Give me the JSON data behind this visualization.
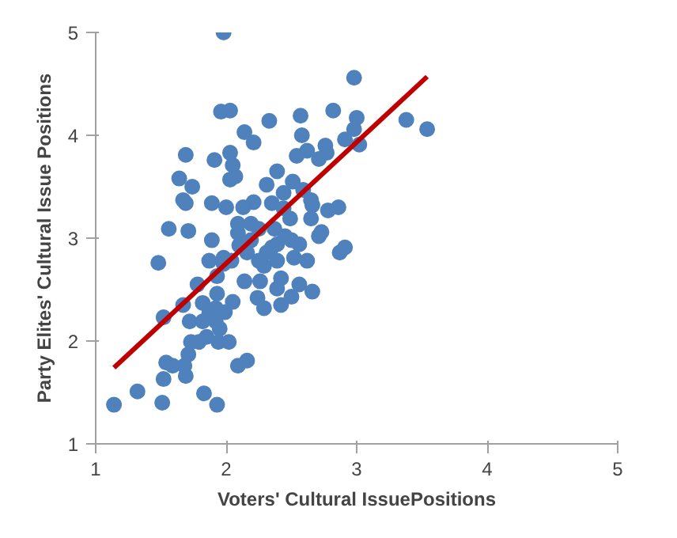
{
  "chart_data": {
    "type": "scatter",
    "xlabel": "Voters' Cultural IssuePositions",
    "ylabel": "Party Elites' Cultural Issue Positions",
    "xlim": [
      1,
      5
    ],
    "ylim": [
      1,
      5
    ],
    "xticks": [
      1,
      2,
      3,
      4,
      5
    ],
    "yticks": [
      1,
      2,
      3,
      4,
      5
    ],
    "grid": false,
    "series": [
      {
        "color": "#4f81bd",
        "marker": "circle",
        "x": [
          1.98,
          2.03,
          2.98,
          3.0,
          3.38,
          3.54,
          2.98,
          2.82,
          3.02,
          2.91,
          2.76,
          2.77,
          2.54,
          2.62,
          2.71,
          2.39,
          2.33,
          2.57,
          2.58,
          2.21,
          2.14,
          1.96,
          1.69,
          1.91,
          2.03,
          2.05,
          2.07,
          2.03,
          1.74,
          1.64,
          1.67,
          1.69,
          1.89,
          2.0,
          2.21,
          2.13,
          2.35,
          2.44,
          2.49,
          2.66,
          2.86,
          2.65,
          2.71,
          2.52,
          2.56,
          2.5,
          2.45,
          2.37,
          2.25,
          2.19,
          2.39,
          2.31,
          2.16,
          2.1,
          2.25,
          2.35,
          2.29,
          2.04,
          1.98,
          1.93,
          1.78,
          1.82,
          1.92,
          1.87,
          1.92,
          1.95,
          1.67,
          1.52,
          1.48,
          1.79,
          1.73,
          1.71,
          1.68,
          1.59,
          1.54,
          1.52,
          1.69,
          1.83,
          1.94,
          2.02,
          2.09,
          2.16,
          1.93,
          1.51,
          1.32,
          1.14,
          1.56,
          1.71,
          1.89,
          1.87,
          1.98,
          2.09,
          2.19,
          2.09,
          2.26,
          2.42,
          2.39,
          2.62,
          2.91,
          2.87,
          2.65,
          2.51,
          2.59,
          2.44,
          2.31,
          2.73,
          2.78,
          1.93,
          2.05,
          1.99,
          1.82,
          1.85,
          1.72,
          2.56,
          2.66,
          2.39,
          2.24,
          2.5,
          2.42,
          2.29,
          2.14
        ],
        "values": [
          5.0,
          4.24,
          4.56,
          4.17,
          4.15,
          4.06,
          4.06,
          4.24,
          3.91,
          3.96,
          3.9,
          3.83,
          3.8,
          3.85,
          3.77,
          3.65,
          4.14,
          4.19,
          4.0,
          3.93,
          4.03,
          4.23,
          3.81,
          3.76,
          3.83,
          3.71,
          3.6,
          3.57,
          3.5,
          3.58,
          3.37,
          3.34,
          3.34,
          3.3,
          3.35,
          3.3,
          3.34,
          3.29,
          3.19,
          3.32,
          3.3,
          3.19,
          3.02,
          2.81,
          2.94,
          2.98,
          3.02,
          3.09,
          3.09,
          2.98,
          2.94,
          2.86,
          2.86,
          2.93,
          2.78,
          2.91,
          2.73,
          2.78,
          2.75,
          2.63,
          2.55,
          2.37,
          2.32,
          2.27,
          2.19,
          2.12,
          2.35,
          2.23,
          2.76,
          1.99,
          1.99,
          1.87,
          1.76,
          1.76,
          1.79,
          1.63,
          1.66,
          1.49,
          1.99,
          1.99,
          1.76,
          1.81,
          1.38,
          1.4,
          1.51,
          1.38,
          3.09,
          3.07,
          2.98,
          2.78,
          2.81,
          3.05,
          3.14,
          3.14,
          2.58,
          2.61,
          2.78,
          2.78,
          2.91,
          2.86,
          3.37,
          3.55,
          3.47,
          3.44,
          3.52,
          3.06,
          3.27,
          2.46,
          2.38,
          2.28,
          2.19,
          2.04,
          2.19,
          2.55,
          2.48,
          2.51,
          2.42,
          2.43,
          2.35,
          2.32,
          2.58
        ]
      },
      {
        "type": "line",
        "marker": "none",
        "color": "#c00000",
        "x": [
          1.14,
          3.54
        ],
        "values": [
          1.74,
          4.57
        ]
      }
    ]
  }
}
